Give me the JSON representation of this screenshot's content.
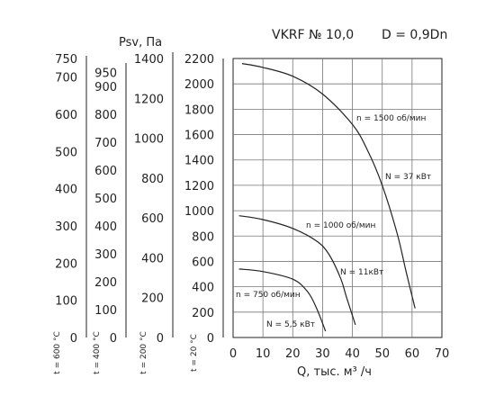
{
  "title": "VKRF № 10,0",
  "diameter": "D = 0,9Dn",
  "chart_data": {
    "type": "line",
    "xlabel": "Q, тыс. м³ /ч",
    "xlim": [
      0,
      70
    ],
    "x_ticks": [
      "0",
      "10",
      "20",
      "30",
      "40",
      "50",
      "60",
      "70"
    ],
    "ylabel": "Psv, Па",
    "grid": true,
    "axes": [
      {
        "key": "t20",
        "temp_label": "t = 20 °C",
        "ylim": [
          0,
          2200
        ],
        "ticks": [
          0,
          200,
          400,
          600,
          800,
          1000,
          1200,
          1400,
          1600,
          1800,
          2000,
          2200
        ],
        "tick_labels": [
          "0",
          "200",
          "400",
          "600",
          "800",
          "1000",
          "1200",
          "1400",
          "1600",
          "1800",
          "2000",
          "2200"
        ]
      },
      {
        "key": "t200",
        "temp_label": "t = 200 °C",
        "ylim": [
          0,
          1400
        ],
        "ticks": [
          0,
          200,
          400,
          600,
          800,
          1000,
          1200,
          1400
        ],
        "tick_labels": [
          "0",
          "200",
          "400",
          "600",
          "800",
          "1000",
          "1200",
          "1400"
        ]
      },
      {
        "key": "t400",
        "temp_label": "t = 400 °C",
        "ylim": [
          0,
          1000
        ],
        "ticks": [
          0,
          100,
          200,
          300,
          400,
          500,
          600,
          700,
          800,
          900,
          950
        ],
        "tick_labels": [
          "0",
          "100",
          "200",
          "300",
          "400",
          "500",
          "600",
          "700",
          "800",
          "900",
          "950"
        ]
      },
      {
        "key": "t600",
        "temp_label": "t = 600 °C",
        "ylim": [
          0,
          750
        ],
        "ticks": [
          0,
          100,
          200,
          300,
          400,
          500,
          600,
          700,
          750
        ],
        "tick_labels": [
          "0",
          "100",
          "200",
          "300",
          "400",
          "500",
          "600",
          "700",
          "750"
        ]
      }
    ],
    "series": [
      {
        "speed_label": "n = 1500 об/мин",
        "power_label": "N = 37 кВт",
        "x": [
          3,
          10,
          20,
          30,
          40,
          45,
          50,
          55,
          58,
          61
        ],
        "y": [
          2160,
          2130,
          2060,
          1920,
          1680,
          1480,
          1200,
          820,
          520,
          230
        ]
      },
      {
        "speed_label": "n = 1000 об/мин",
        "power_label": "N = 11кВт",
        "x": [
          2,
          10,
          20,
          28,
          32,
          36,
          38,
          41
        ],
        "y": [
          960,
          930,
          860,
          760,
          660,
          470,
          320,
          100
        ]
      },
      {
        "speed_label": "n = 750 об/мин",
        "power_label": "N = 5,5 кВт",
        "x": [
          2,
          10,
          20,
          25,
          28,
          31
        ],
        "y": [
          540,
          520,
          460,
          360,
          230,
          50
        ]
      }
    ]
  }
}
